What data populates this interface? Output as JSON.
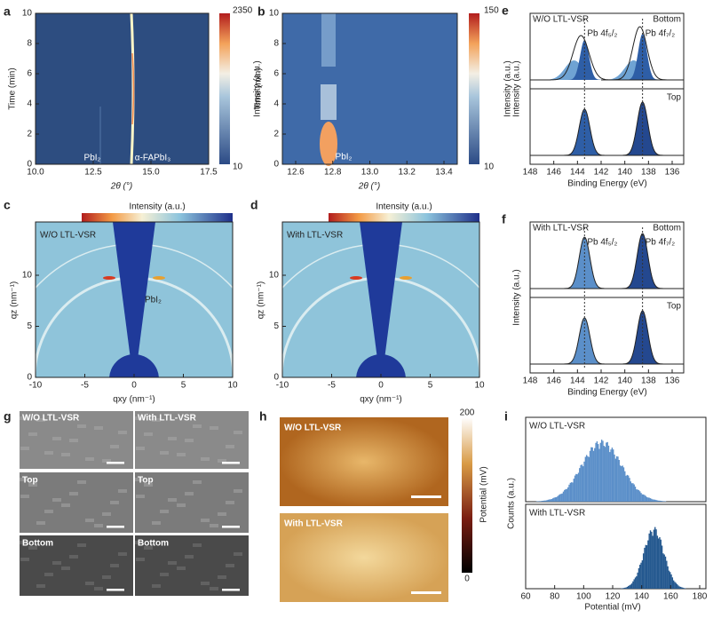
{
  "panels": {
    "a": {
      "label": "a",
      "y_label": "Time (min)",
      "x_label": "2θ (°)",
      "yticks": [
        "0",
        "2",
        "4",
        "6",
        "8",
        "10"
      ],
      "xticks": [
        "10.0",
        "12.5",
        "15.0",
        "17.5"
      ],
      "colorbar": {
        "max": "2350",
        "min": "10",
        "label": "Intensity (a.u.)"
      },
      "annotations": [
        "PbI₂",
        "α-FAPbI₃"
      ]
    },
    "b": {
      "label": "b",
      "y_label": "Time (min)",
      "x_label": "2θ (°)",
      "yticks": [
        "0",
        "2",
        "4",
        "6",
        "8",
        "10"
      ],
      "xticks": [
        "12.6",
        "12.8",
        "13.0",
        "13.2",
        "13.4"
      ],
      "colorbar": {
        "max": "150",
        "min": "10",
        "label": "Intensity (a.u.)"
      },
      "annotations": [
        "PbI₂"
      ]
    },
    "c": {
      "label": "c",
      "colorbar_label": "Intensity (a.u.)",
      "sample": "W/O LTL-VSR",
      "annotation": "PbI₂",
      "y_label": "qz (nm⁻¹)",
      "x_label": "qxy (nm⁻¹)",
      "yticks": [
        "0",
        "5",
        "10"
      ],
      "xticks": [
        "-10",
        "-5",
        "0",
        "5",
        "10"
      ]
    },
    "d": {
      "label": "d",
      "colorbar_label": "Intensity (a.u.)",
      "sample": "With LTL-VSR",
      "y_label": "qz (nm⁻¹)",
      "x_label": "qxy (nm⁻¹)",
      "yticks": [
        "0",
        "5",
        "10"
      ],
      "xticks": [
        "-10",
        "-5",
        "0",
        "5",
        "10"
      ]
    },
    "e": {
      "label": "e",
      "sample": "W/O LTL-VSR",
      "top": "Top",
      "bottom": "Bottom",
      "peaks": [
        "Pb 4f₅/₂",
        "Pb 4f₇/₂"
      ],
      "y_label": "Intensity (a.u.)",
      "x_label": "Binding Energy (eV)",
      "xticks": [
        "148",
        "146",
        "144",
        "142",
        "140",
        "138",
        "136"
      ]
    },
    "f": {
      "label": "f",
      "sample": "With LTL-VSR",
      "top": "Top",
      "bottom": "Bottom",
      "peaks": [
        "Pb 4f₅/₂",
        "Pb 4f₇/₂"
      ],
      "y_label": "Intensity (a.u.)",
      "x_label": "Binding Energy (eV)",
      "xticks": [
        "148",
        "146",
        "144",
        "142",
        "140",
        "138",
        "136"
      ]
    },
    "g": {
      "label": "g",
      "columns": [
        "W/O LTL-VSR",
        "With LTL-VSR"
      ],
      "rows": [
        "Top",
        "Bottom"
      ]
    },
    "h": {
      "label": "h",
      "images": [
        "W/O LTL-VSR",
        "With LTL-VSR"
      ],
      "colorbar": {
        "max": "200",
        "min": "0",
        "label": "Potential (mV)"
      }
    },
    "i": {
      "label": "i",
      "histograms": [
        "W/O LTL-VSR",
        "With LTL-VSR"
      ],
      "y_label": "Counts (a.u.)",
      "x_label": "Potential (mV)",
      "xticks": [
        "60",
        "80",
        "100",
        "120",
        "140",
        "160",
        "180"
      ]
    }
  }
}
